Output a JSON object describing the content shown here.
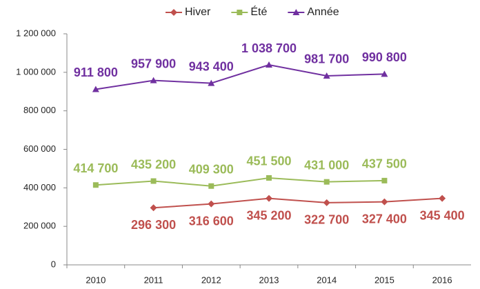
{
  "chart_data": {
    "type": "line",
    "categories": [
      "2010",
      "2011",
      "2012",
      "2013",
      "2014",
      "2015",
      "2016"
    ],
    "series": [
      {
        "name": "Hiver",
        "color": "#c0504d",
        "marker": "diamond",
        "values": [
          null,
          296300,
          316600,
          345200,
          322700,
          327400,
          345400
        ],
        "value_labels": [
          null,
          "296 300",
          "316 600",
          "345 200",
          "322 700",
          "327 400",
          "345 400"
        ]
      },
      {
        "name": "Été",
        "color": "#9bbb59",
        "marker": "square",
        "values": [
          414700,
          435200,
          409300,
          451500,
          431000,
          437500,
          null
        ],
        "value_labels": [
          "414 700",
          "435 200",
          "409 300",
          "451 500",
          "431 000",
          "437 500",
          null
        ]
      },
      {
        "name": "Année",
        "color": "#7030a0",
        "marker": "triangle",
        "values": [
          911800,
          957900,
          943400,
          1038700,
          981700,
          990800,
          null
        ],
        "value_labels": [
          "911 800",
          "957 900",
          "943 400",
          "1 038 700",
          "981 700",
          "990 800",
          null
        ]
      }
    ],
    "ylim": [
      0,
      1200000
    ],
    "yticks": [
      0,
      {
        "value": 200000,
        "label": "200 000"
      },
      {
        "value": 400000,
        "label": "400 000"
      },
      {
        "value": 600000,
        "label": "600 000"
      },
      {
        "value": 800000,
        "label": "800 000"
      },
      {
        "value": 1000000,
        "label": "1 000 000"
      },
      {
        "value": 1200000,
        "label": "1 200 000"
      }
    ],
    "grid": false,
    "legend": "top"
  }
}
